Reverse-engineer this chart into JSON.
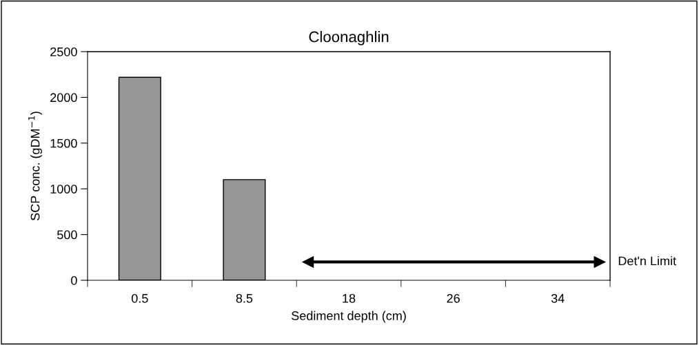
{
  "chart_data": {
    "type": "bar",
    "title": "Cloonaghlin",
    "xlabel": "Sediment depth (cm)",
    "ylabel": "SCP conc. (gDM$^{−1}$)",
    "categories": [
      "0.5",
      "8.5",
      "18",
      "26",
      "34"
    ],
    "values": [
      2220,
      1100,
      null,
      null,
      null
    ],
    "color": "#969696",
    "ylim": [
      0,
      2500
    ],
    "yticks": [
      0,
      500,
      1000,
      1500,
      2000,
      2500
    ],
    "grid": false,
    "ref_lines": [
      {
        "axis": "y",
        "value": 200,
        "label": "Det'n Limit",
        "color": "#000000"
      }
    ]
  }
}
